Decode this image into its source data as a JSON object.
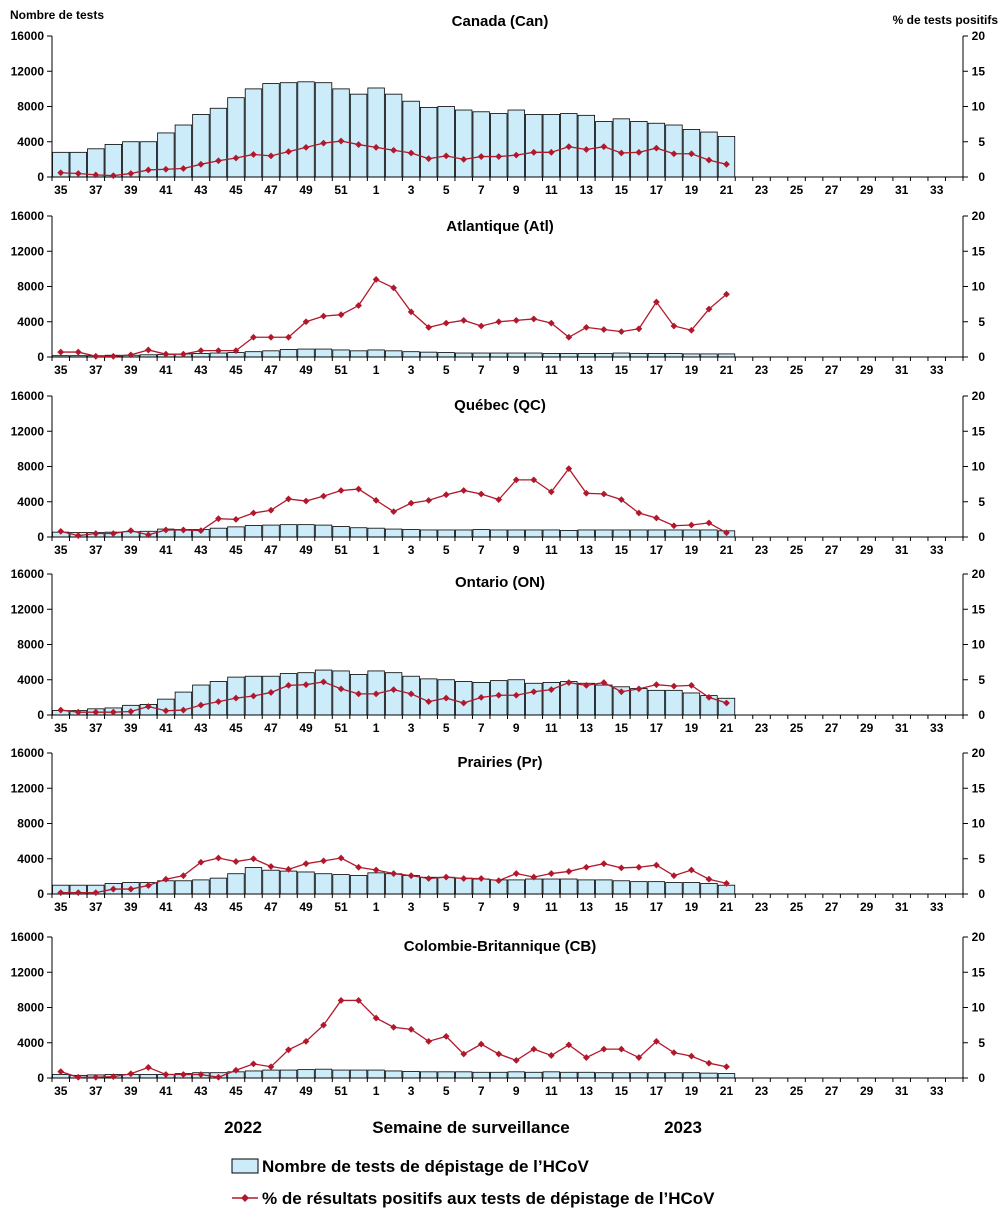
{
  "header": {
    "left_axis_label": "Nombre de tests",
    "right_axis_label": "% de tests positifs"
  },
  "footer": {
    "year_left": "2022",
    "year_right": "2023",
    "xlabel": "Semaine de surveillance"
  },
  "legend": {
    "bars_label": "Nombre de tests de dépistage de l’HCoV",
    "line_label": "% de résultats positifs aux tests de dépistage de l’HCoV"
  },
  "colors": {
    "bar_fill": "#CCECFA",
    "bar_stroke": "#000000",
    "line": "#B2182B",
    "axis": "#000000"
  },
  "chart_data": [
    {
      "type": "bar",
      "title": "Canada (Can)",
      "ylabel": "Nombre de tests",
      "y2label": "% de tests positifs",
      "ylim": [
        0,
        16000
      ],
      "y2lim": [
        0,
        20
      ],
      "yticks": [
        0,
        4000,
        8000,
        12000,
        16000
      ],
      "y2ticks": [
        0,
        5,
        10,
        15,
        20
      ],
      "weeks": [
        35,
        36,
        37,
        38,
        39,
        40,
        41,
        42,
        43,
        44,
        45,
        46,
        47,
        48,
        49,
        50,
        51,
        52,
        1,
        2,
        3,
        4,
        5,
        6,
        7,
        8,
        9,
        10,
        11,
        12,
        13,
        14,
        15,
        16,
        17,
        18,
        19,
        20,
        21,
        22,
        23,
        24,
        25,
        26,
        27,
        28,
        29,
        30,
        31,
        32,
        33,
        34
      ],
      "week_labels": [
        "35",
        "37",
        "39",
        "41",
        "43",
        "45",
        "47",
        "49",
        "51",
        "1",
        "3",
        "5",
        "7",
        "9",
        "11",
        "13",
        "15",
        "17",
        "19",
        "21",
        "23",
        "25",
        "27",
        "29",
        "31",
        "33"
      ],
      "series": [
        {
          "name": "Nombre de tests de dépistage de l’HCoV",
          "values": [
            2800,
            2800,
            3200,
            3700,
            4000,
            4000,
            5000,
            5900,
            7100,
            7800,
            9000,
            10000,
            10600,
            10700,
            10800,
            10700,
            10000,
            9400,
            10100,
            9400,
            8600,
            7900,
            8000,
            7600,
            7400,
            7200,
            7600,
            7100,
            7100,
            7200,
            7000,
            6300,
            6600,
            6300,
            6100,
            5900,
            5400,
            5100,
            4600
          ]
        },
        {
          "name": "% de résultats positifs aux tests de dépistage de l’HCoV",
          "values": [
            0.6,
            0.5,
            0.3,
            0.2,
            0.5,
            1.0,
            1.1,
            1.2,
            1.8,
            2.3,
            2.7,
            3.2,
            3.0,
            3.6,
            4.2,
            4.8,
            5.1,
            4.6,
            4.2,
            3.8,
            3.4,
            2.6,
            3.0,
            2.5,
            2.9,
            2.9,
            3.1,
            3.5,
            3.5,
            4.3,
            3.9,
            4.3,
            3.4,
            3.5,
            4.1,
            3.3,
            3.3,
            2.4,
            1.8
          ]
        }
      ]
    },
    {
      "type": "bar",
      "title": "Atlantique (Atl)",
      "ylim": [
        0,
        16000
      ],
      "y2lim": [
        0,
        20
      ],
      "yticks": [
        0,
        4000,
        8000,
        12000,
        16000
      ],
      "y2ticks": [
        0,
        5,
        10,
        15,
        20
      ],
      "week_labels": [
        "35",
        "37",
        "39",
        "41",
        "43",
        "45",
        "47",
        "49",
        "51",
        "1",
        "3",
        "5",
        "7",
        "9",
        "11",
        "13",
        "15",
        "17",
        "19",
        "21",
        "23",
        "25",
        "27",
        "29",
        "31",
        "33"
      ],
      "series": [
        {
          "name": "Nombre de tests de dépistage de l’HCoV",
          "values": [
            150,
            150,
            150,
            200,
            200,
            250,
            300,
            350,
            400,
            450,
            500,
            600,
            700,
            850,
            900,
            900,
            800,
            700,
            800,
            700,
            600,
            550,
            500,
            450,
            450,
            450,
            450,
            450,
            400,
            400,
            400,
            400,
            450,
            400,
            400,
            400,
            350,
            350,
            350
          ]
        },
        {
          "name": "% de résultats positifs aux tests de dépistage de l’HCoV",
          "values": [
            0.7,
            0.7,
            0.1,
            0.1,
            0.3,
            1.0,
            0.4,
            0.4,
            0.9,
            0.9,
            0.9,
            2.8,
            2.8,
            2.8,
            5.0,
            5.8,
            6.0,
            7.3,
            11.0,
            9.8,
            6.4,
            4.2,
            4.8,
            5.2,
            4.4,
            5.0,
            5.2,
            5.4,
            4.8,
            2.8,
            4.2,
            3.9,
            3.6,
            4.0,
            7.8,
            4.4,
            3.8,
            6.8,
            8.9
          ]
        }
      ]
    },
    {
      "type": "bar",
      "title": "Québec (QC)",
      "ylim": [
        0,
        16000
      ],
      "y2lim": [
        0,
        20
      ],
      "yticks": [
        0,
        4000,
        8000,
        12000,
        16000
      ],
      "y2ticks": [
        0,
        5,
        10,
        15,
        20
      ],
      "week_labels": [
        "35",
        "37",
        "39",
        "41",
        "43",
        "45",
        "47",
        "49",
        "51",
        "1",
        "3",
        "5",
        "7",
        "9",
        "11",
        "13",
        "15",
        "17",
        "19",
        "21",
        "23",
        "25",
        "27",
        "29",
        "31",
        "33"
      ],
      "series": [
        {
          "name": "Nombre de tests de dépistage de l’HCoV",
          "values": [
            550,
            500,
            500,
            550,
            600,
            650,
            900,
            850,
            850,
            1000,
            1150,
            1300,
            1350,
            1400,
            1400,
            1350,
            1200,
            1050,
            1000,
            900,
            850,
            800,
            800,
            800,
            850,
            800,
            800,
            800,
            800,
            750,
            800,
            800,
            800,
            800,
            800,
            800,
            800,
            800,
            700
          ]
        },
        {
          "name": "% de résultats positifs aux tests de dépistage de l’HCoV",
          "values": [
            0.8,
            0.2,
            0.5,
            0.5,
            0.9,
            0.3,
            1.0,
            1.0,
            0.9,
            2.6,
            2.5,
            3.4,
            3.8,
            5.4,
            5.1,
            5.8,
            6.6,
            6.8,
            5.2,
            3.6,
            4.8,
            5.2,
            6.0,
            6.6,
            6.1,
            5.3,
            8.1,
            8.1,
            6.4,
            9.7,
            6.2,
            6.1,
            5.3,
            3.4,
            2.7,
            1.6,
            1.7,
            2.0,
            0.6
          ]
        }
      ]
    },
    {
      "type": "bar",
      "title": "Ontario (ON)",
      "ylim": [
        0,
        16000
      ],
      "y2lim": [
        0,
        20
      ],
      "yticks": [
        0,
        4000,
        8000,
        12000,
        16000
      ],
      "y2ticks": [
        0,
        5,
        10,
        15,
        20
      ],
      "week_labels": [
        "35",
        "37",
        "39",
        "41",
        "43",
        "45",
        "47",
        "49",
        "51",
        "1",
        "3",
        "5",
        "7",
        "9",
        "11",
        "13",
        "15",
        "17",
        "19",
        "21",
        "23",
        "25",
        "27",
        "29",
        "31",
        "33"
      ],
      "series": [
        {
          "name": "Nombre de tests de dépistage de l’HCoV",
          "values": [
            500,
            500,
            700,
            800,
            1100,
            1200,
            1800,
            2600,
            3400,
            3800,
            4300,
            4400,
            4400,
            4700,
            4800,
            5100,
            5000,
            4600,
            5000,
            4800,
            4400,
            4100,
            4000,
            3800,
            3700,
            3900,
            4000,
            3600,
            3700,
            3800,
            3600,
            3400,
            3200,
            3000,
            2800,
            2800,
            2500,
            2200,
            1900
          ]
        },
        {
          "name": "% de résultats positifs aux tests de dépistage de l’HCoV",
          "values": [
            0.7,
            0.4,
            0.4,
            0.4,
            0.5,
            1.2,
            0.6,
            0.7,
            1.4,
            1.9,
            2.4,
            2.7,
            3.2,
            4.2,
            4.3,
            4.7,
            3.7,
            3.0,
            3.0,
            3.6,
            3.0,
            1.9,
            2.4,
            1.7,
            2.5,
            2.8,
            2.8,
            3.3,
            3.6,
            4.6,
            4.2,
            4.6,
            3.3,
            3.7,
            4.3,
            4.1,
            4.2,
            2.5,
            1.7
          ]
        }
      ]
    },
    {
      "type": "bar",
      "title": "Prairies (Pr)",
      "ylim": [
        0,
        16000
      ],
      "y2lim": [
        0,
        20
      ],
      "yticks": [
        0,
        4000,
        8000,
        12000,
        16000
      ],
      "y2ticks": [
        0,
        5,
        10,
        15,
        20
      ],
      "week_labels": [
        "35",
        "37",
        "39",
        "41",
        "43",
        "45",
        "47",
        "49",
        "51",
        "1",
        "3",
        "5",
        "7",
        "9",
        "11",
        "13",
        "15",
        "17",
        "19",
        "21",
        "23",
        "25",
        "27",
        "29",
        "31",
        "33"
      ],
      "series": [
        {
          "name": "Nombre de tests de dépistage de l’HCoV",
          "values": [
            1000,
            1000,
            1000,
            1200,
            1300,
            1300,
            1500,
            1500,
            1600,
            1800,
            2300,
            3000,
            2700,
            2600,
            2500,
            2300,
            2200,
            2100,
            2400,
            2300,
            2100,
            1900,
            1900,
            1800,
            1700,
            1600,
            1600,
            1700,
            1700,
            1700,
            1600,
            1600,
            1500,
            1400,
            1400,
            1300,
            1300,
            1200,
            1000
          ]
        },
        {
          "name": "% de résultats positifs aux tests de dépistage de l’HCoV",
          "values": [
            0.2,
            0.2,
            0.2,
            0.7,
            0.7,
            1.2,
            2.1,
            2.6,
            4.5,
            5.1,
            4.6,
            5.0,
            3.9,
            3.5,
            4.3,
            4.7,
            5.1,
            3.8,
            3.4,
            2.9,
            2.6,
            2.2,
            2.4,
            2.2,
            2.2,
            1.9,
            2.9,
            2.4,
            2.9,
            3.2,
            3.8,
            4.3,
            3.7,
            3.8,
            4.1,
            2.6,
            3.4,
            2.1,
            1.5
          ]
        }
      ]
    },
    {
      "type": "bar",
      "title": "Colombie-Britannique (CB)",
      "ylim": [
        0,
        16000
      ],
      "y2lim": [
        0,
        20
      ],
      "yticks": [
        0,
        4000,
        8000,
        12000,
        16000
      ],
      "y2ticks": [
        0,
        5,
        10,
        15,
        20
      ],
      "week_labels": [
        "35",
        "37",
        "39",
        "41",
        "43",
        "45",
        "47",
        "49",
        "51",
        "1",
        "3",
        "5",
        "7",
        "9",
        "11",
        "13",
        "15",
        "17",
        "19",
        "21",
        "23",
        "25",
        "27",
        "29",
        "31",
        "33"
      ],
      "series": [
        {
          "name": "Nombre de tests de dépistage de l’HCoV",
          "values": [
            400,
            300,
            350,
            400,
            400,
            400,
            400,
            500,
            600,
            600,
            700,
            800,
            900,
            900,
            950,
            1000,
            900,
            900,
            900,
            800,
            750,
            700,
            700,
            700,
            650,
            650,
            700,
            650,
            700,
            650,
            650,
            600,
            600,
            600,
            600,
            600,
            600,
            550,
            500
          ]
        },
        {
          "name": "% de résultats positifs aux tests de dépistage de l’HCoV",
          "values": [
            0.9,
            0.1,
            0.1,
            0.2,
            0.6,
            1.5,
            0.5,
            0.5,
            0.5,
            0.1,
            1.1,
            2.0,
            1.6,
            4.0,
            5.2,
            7.5,
            11.0,
            11.0,
            8.5,
            7.2,
            6.9,
            5.2,
            5.9,
            3.4,
            4.8,
            3.4,
            2.5,
            4.1,
            3.2,
            4.7,
            2.9,
            4.1,
            4.1,
            2.9,
            5.2,
            3.6,
            3.1,
            2.1,
            1.6
          ]
        }
      ]
    }
  ]
}
